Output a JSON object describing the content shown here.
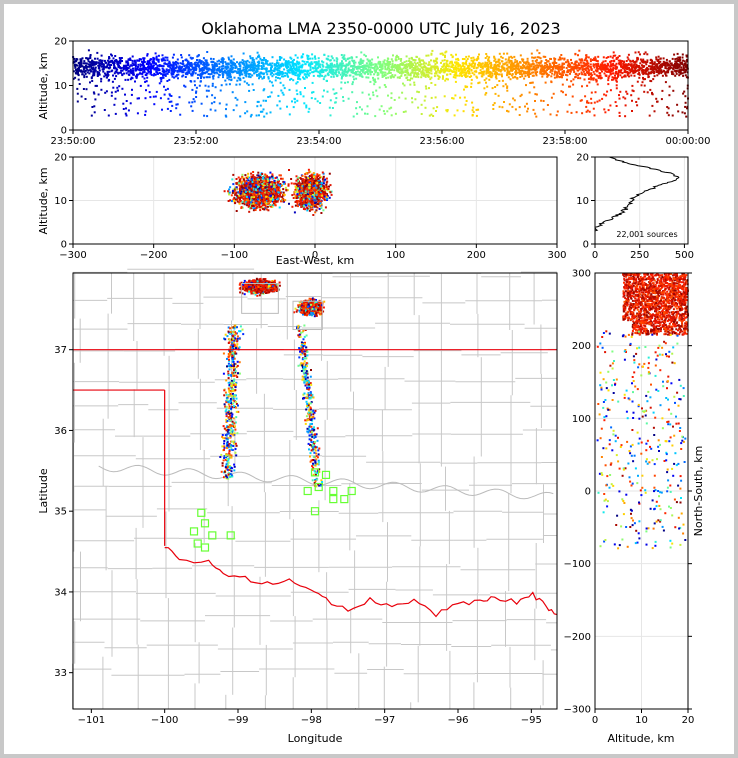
{
  "chart_data": [
    {
      "id": "time-altitude",
      "type": "scatter",
      "title": "Oklahoma LMA 2350-0000 UTC July 16, 2023",
      "xlabel": "",
      "ylabel": "Altitude, km",
      "x_ticks": [
        "23:50:00",
        "23:52:00",
        "23:54:00",
        "23:56:00",
        "23:58:00",
        "00:00:00"
      ],
      "xlim_minutes": [
        0,
        10
      ],
      "ylim": [
        0,
        20
      ],
      "y_ticks": [
        0,
        10,
        20
      ],
      "color_by": "time",
      "colormap": [
        "#00007f",
        "#0000ff",
        "#0080ff",
        "#00e5ff",
        "#7fff7f",
        "#ffe500",
        "#ff8000",
        "#ff1a00",
        "#7f0000"
      ],
      "source_density_description": "dense band 5-20 km, most sources 8-19 km"
    },
    {
      "id": "east-west-altitude",
      "type": "scatter",
      "xlabel": "East-West, km",
      "ylabel": "Altitude, km",
      "xlim": [
        -300,
        300
      ],
      "x_ticks": [
        -300,
        -200,
        -100,
        0,
        100,
        200,
        300
      ],
      "ylim": [
        0,
        20
      ],
      "y_ticks": [
        0,
        10,
        20
      ],
      "clusters": [
        {
          "x_center": -70,
          "x_halfwidth": 55,
          "alt_range": [
            2,
            20
          ]
        },
        {
          "x_center": -5,
          "x_halfwidth": 35,
          "alt_range": [
            1,
            20
          ]
        }
      ]
    },
    {
      "id": "altitude-histogram",
      "type": "line",
      "xlim": [
        0,
        520
      ],
      "x_ticks": [
        0,
        250,
        500
      ],
      "ylim": [
        0,
        20
      ],
      "y_ticks": [
        0,
        10,
        20
      ],
      "annotation": "22,001 sources",
      "profile": [
        [
          0,
          3
        ],
        [
          15,
          4
        ],
        [
          50,
          5
        ],
        [
          100,
          6
        ],
        [
          140,
          7
        ],
        [
          170,
          8
        ],
        [
          185,
          9
        ],
        [
          200,
          10
        ],
        [
          230,
          11
        ],
        [
          280,
          12
        ],
        [
          330,
          13
        ],
        [
          400,
          14
        ],
        [
          470,
          15
        ],
        [
          440,
          16
        ],
        [
          350,
          17
        ],
        [
          250,
          18
        ],
        [
          150,
          19
        ],
        [
          80,
          20
        ]
      ]
    },
    {
      "id": "plan-view",
      "type": "scatter",
      "xlabel": "Longitude",
      "ylabel": "Latitude",
      "xlim": [
        -101.25,
        -94.65
      ],
      "ylim": [
        32.55,
        37.95
      ],
      "x_ticks": [
        -101,
        -100,
        -99,
        -98,
        -97,
        -96,
        -95
      ],
      "y_ticks": [
        33,
        34,
        35,
        36,
        37
      ],
      "state_border_lat": 37.0,
      "panhandle_lat": 36.5,
      "west_border_lon": -100.0,
      "stations": [
        [
          -99.6,
          34.75
        ],
        [
          -99.5,
          34.98
        ],
        [
          -99.45,
          34.85
        ],
        [
          -99.35,
          34.7
        ],
        [
          -99.1,
          34.7
        ],
        [
          -99.55,
          34.6
        ],
        [
          -99.45,
          34.55
        ],
        [
          -97.95,
          35.48
        ],
        [
          -97.8,
          35.45
        ],
        [
          -97.9,
          35.3
        ],
        [
          -97.7,
          35.25
        ],
        [
          -97.55,
          35.15
        ],
        [
          -97.45,
          35.25
        ],
        [
          -97.7,
          35.15
        ],
        [
          -98.05,
          35.25
        ],
        [
          -97.95,
          35.0
        ]
      ],
      "station_color": "#66ff33"
    },
    {
      "id": "altitude-north-south",
      "type": "scatter",
      "xlabel": "Altitude, km",
      "ylabel": "North-South, km",
      "xlim": [
        0,
        20
      ],
      "x_ticks": [
        0,
        10,
        20
      ],
      "ylim": [
        -300,
        300
      ],
      "y_ticks": [
        -300,
        -200,
        -100,
        0,
        100,
        200,
        300
      ]
    }
  ],
  "colors": {
    "border": "#e8000b",
    "counties": "#c8c8c8",
    "frame_background": "#ffffff",
    "outer_background": "#c8c8c8"
  }
}
